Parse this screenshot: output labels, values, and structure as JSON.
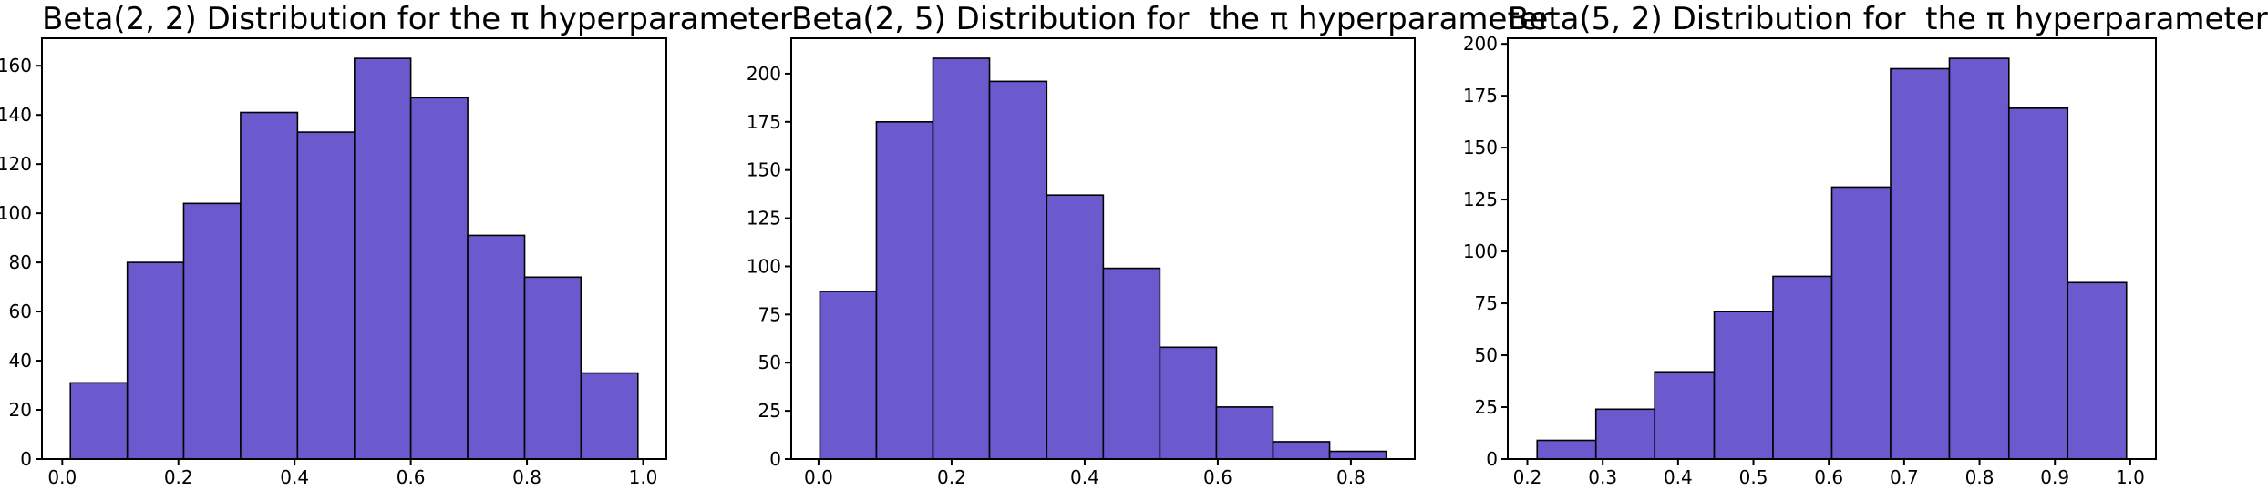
{
  "figure": {
    "background_color": "#ffffff",
    "bar_fill_color": "#6a5acd",
    "bar_edge_color": "#000000",
    "spine_color": "#000000",
    "tick_label_color": "#000000",
    "title_color": "#000000"
  },
  "chart_data": [
    {
      "type": "bar",
      "subtype": "histogram",
      "title": "Beta(2, 2) Distribution for the π hyperparameter",
      "xlabel": "",
      "ylabel": "",
      "bin_edges": [
        0.014,
        0.112,
        0.209,
        0.307,
        0.405,
        0.503,
        0.6,
        0.698,
        0.796,
        0.893,
        0.991
      ],
      "values": [
        31,
        80,
        104,
        141,
        133,
        163,
        147,
        91,
        74,
        35
      ],
      "x_ticks": [
        0.0,
        0.2,
        0.4,
        0.6,
        0.8,
        1.0
      ],
      "y_ticks": [
        0,
        20,
        40,
        60,
        80,
        100,
        120,
        140,
        160
      ],
      "xlim": [
        -0.035,
        1.04
      ],
      "ylim": [
        0,
        171.2
      ],
      "grid": false,
      "legend": null
    },
    {
      "type": "bar",
      "subtype": "histogram",
      "title": "Beta(2, 5) Distribution for  the π hyperparameter",
      "xlabel": "",
      "ylabel": "",
      "bin_edges": [
        0.002,
        0.087,
        0.172,
        0.257,
        0.343,
        0.428,
        0.513,
        0.598,
        0.683,
        0.768,
        0.853
      ],
      "values": [
        87,
        175,
        208,
        196,
        137,
        99,
        58,
        27,
        9,
        4
      ],
      "x_ticks": [
        0.0,
        0.2,
        0.4,
        0.6,
        0.8
      ],
      "y_ticks": [
        0,
        25,
        50,
        75,
        100,
        125,
        150,
        175,
        200
      ],
      "xlim": [
        -0.041,
        0.896
      ],
      "ylim": [
        0,
        218.4
      ],
      "grid": false,
      "legend": null
    },
    {
      "type": "bar",
      "subtype": "histogram",
      "title": "Beta(5, 2) Distribution for  the π hyperparameter",
      "xlabel": "",
      "ylabel": "",
      "bin_edges": [
        0.213,
        0.291,
        0.369,
        0.448,
        0.526,
        0.604,
        0.682,
        0.76,
        0.839,
        0.917,
        0.995
      ],
      "values": [
        9,
        24,
        42,
        71,
        88,
        131,
        188,
        193,
        169,
        85
      ],
      "x_ticks": [
        0.2,
        0.3,
        0.4,
        0.5,
        0.6,
        0.7,
        0.8,
        0.9,
        1.0
      ],
      "y_ticks": [
        0,
        25,
        50,
        75,
        100,
        125,
        150,
        175,
        200
      ],
      "xlim": [
        0.174,
        1.034
      ],
      "ylim": [
        0,
        202.7
      ],
      "grid": false,
      "legend": null
    }
  ]
}
